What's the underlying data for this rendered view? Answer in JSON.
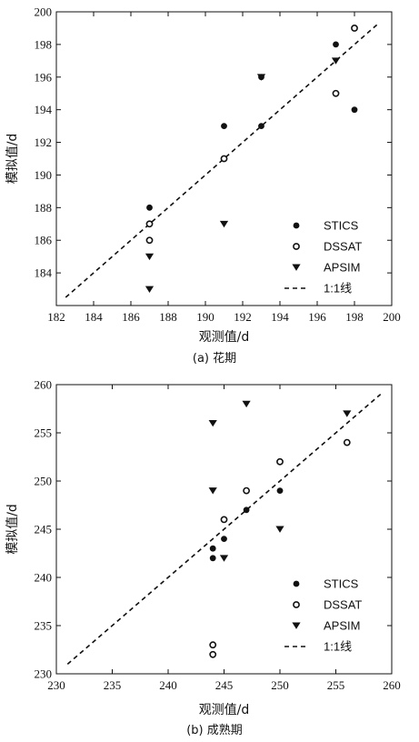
{
  "chart_data": [
    {
      "type": "scatter",
      "caption": "(a) 花期",
      "xlabel": "观测值/d",
      "ylabel": "模拟值/d",
      "xlim": [
        182,
        200
      ],
      "ylim": [
        182,
        200
      ],
      "xticks": [
        182,
        184,
        186,
        188,
        190,
        192,
        194,
        196,
        198,
        200
      ],
      "yticks": [
        184,
        186,
        188,
        190,
        192,
        194,
        196,
        198,
        200
      ],
      "legend_position": "bottom-right",
      "series": [
        {
          "name": "STICS",
          "marker": "filled-circle",
          "points": [
            [
              187,
              188
            ],
            [
              191,
              193
            ],
            [
              193,
              193
            ],
            [
              193,
              196
            ],
            [
              197,
              198
            ],
            [
              198,
              199
            ],
            [
              198,
              194
            ]
          ]
        },
        {
          "name": "DSSAT",
          "marker": "open-circle",
          "points": [
            [
              187,
              187
            ],
            [
              187,
              186
            ],
            [
              191,
              191
            ],
            [
              197,
              195
            ],
            [
              198,
              199
            ]
          ]
        },
        {
          "name": "APSIM",
          "marker": "filled-triangle-down",
          "points": [
            [
              187,
              185
            ],
            [
              187,
              183
            ],
            [
              191,
              187
            ],
            [
              193,
              196
            ],
            [
              197,
              197
            ]
          ]
        },
        {
          "name": "1:1线",
          "marker": "dashed-line",
          "line": [
            [
              182.5,
              182.5
            ],
            [
              199.3,
              199.3
            ]
          ]
        }
      ]
    },
    {
      "type": "scatter",
      "caption": "(b) 成熟期",
      "xlabel": "观测值/d",
      "ylabel": "模拟值/d",
      "xlim": [
        230,
        260
      ],
      "ylim": [
        230,
        260
      ],
      "xticks": [
        230,
        235,
        240,
        245,
        250,
        255,
        260
      ],
      "yticks": [
        230,
        235,
        240,
        245,
        250,
        255,
        260
      ],
      "legend_position": "bottom-right",
      "series": [
        {
          "name": "STICS",
          "marker": "filled-circle",
          "points": [
            [
              244,
              243
            ],
            [
              244,
              242
            ],
            [
              245,
              244
            ],
            [
              247,
              247
            ],
            [
              250,
              249
            ]
          ]
        },
        {
          "name": "DSSAT",
          "marker": "open-circle",
          "points": [
            [
              244,
              233
            ],
            [
              244,
              232
            ],
            [
              245,
              246
            ],
            [
              247,
              249
            ],
            [
              250,
              252
            ],
            [
              256,
              254
            ]
          ]
        },
        {
          "name": "APSIM",
          "marker": "filled-triangle-down",
          "points": [
            [
              244,
              256
            ],
            [
              244,
              249
            ],
            [
              245,
              242
            ],
            [
              247,
              258
            ],
            [
              250,
              245
            ],
            [
              256,
              257
            ]
          ]
        },
        {
          "name": "1:1线",
          "marker": "dashed-line",
          "line": [
            [
              231,
              231
            ],
            [
              259,
              259
            ]
          ]
        }
      ]
    }
  ]
}
